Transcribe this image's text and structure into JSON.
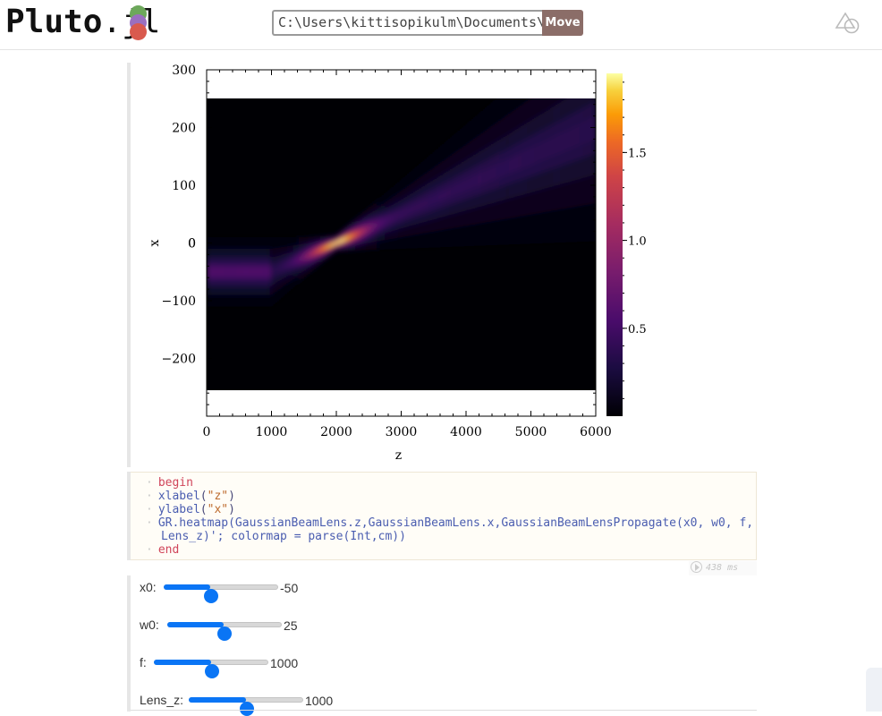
{
  "header": {
    "logo_main": "Pluto",
    "logo_dot": ".",
    "logo_suffix": "jl",
    "path_value": "C:\\Users\\kittisopikulm\\Documents\\",
    "move_label": "Move",
    "logo_colors": [
      "#6da85b",
      "#9a6fc0",
      "#d95a4e"
    ]
  },
  "chart_data": {
    "type": "heatmap",
    "xlabel": "z",
    "ylabel": "x",
    "xlim": [
      0,
      6000
    ],
    "ylim": [
      -300,
      300
    ],
    "data_extent_x": [
      0,
      6000
    ],
    "data_extent_y": [
      -256,
      256
    ],
    "xticks": [
      "0",
      "1000",
      "2000",
      "3000",
      "4000",
      "5000",
      "6000"
    ],
    "yticks": [
      "−200",
      "−100",
      "0",
      "100",
      "200",
      "300"
    ],
    "colorbar_ticks": [
      "0.5",
      "1.0",
      "1.5"
    ],
    "colorbar_range": [
      0,
      1.95
    ],
    "colormap": "inferno",
    "beam": {
      "x0": -50,
      "w0": 25,
      "f": 1000,
      "lens_z": 1000,
      "waist_z": 2000,
      "exit_x_at_6000": 200
    }
  },
  "code": {
    "line1": "begin",
    "line2_fn": "xlabel",
    "line2_str": "\"z\"",
    "line3_fn": "ylabel",
    "line3_str": "\"x\"",
    "line4a": "GR.heatmap(GaussianBeamLens.z,GaussianBeamLens.x,GaussianBeamLensPropagate(x0, w0, f,",
    "line4b": "Lens_z)'; colormap = parse(Int,cm))",
    "line5": "end",
    "timing": "438 ms"
  },
  "sliders": [
    {
      "label": "x0:",
      "value": "-50",
      "fraction": 0.41
    },
    {
      "label": "w0:",
      "value": "25",
      "fraction": 0.49
    },
    {
      "label": "f:",
      "value": "1000",
      "fraction": 0.5
    },
    {
      "label": "Lens_z:",
      "value": "1000",
      "fraction": 0.5
    }
  ]
}
